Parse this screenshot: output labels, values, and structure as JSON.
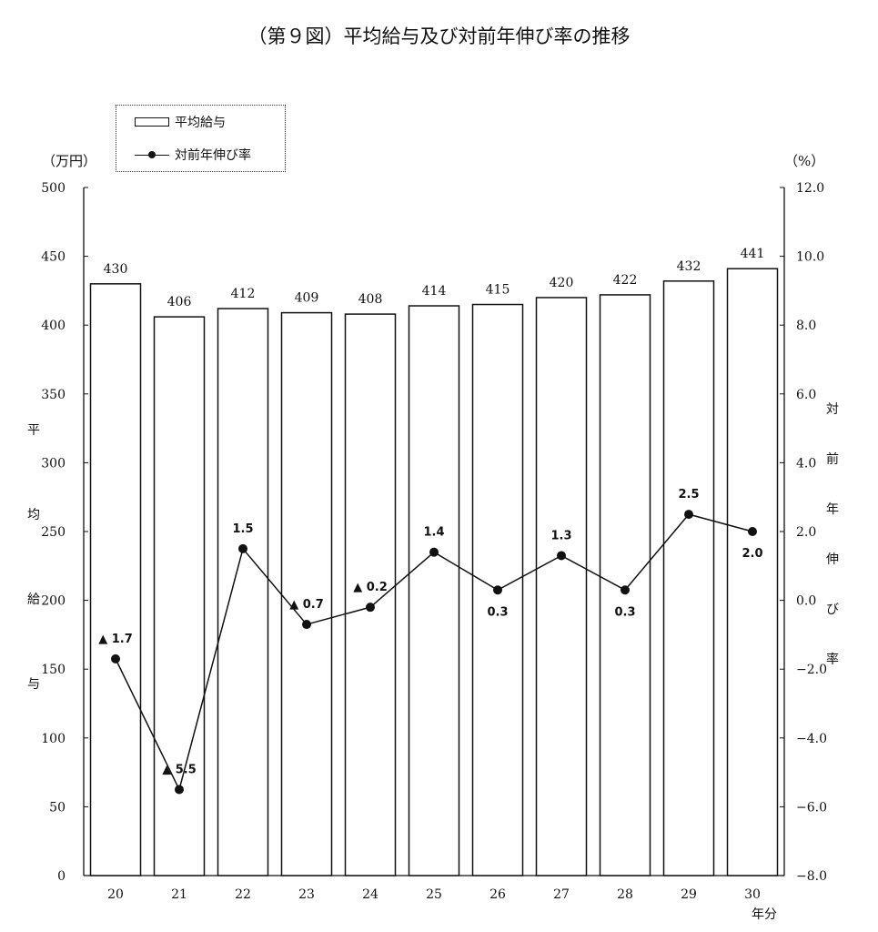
{
  "title": "（第９図）平均給与及び対前年伸び率の推移",
  "chart_data": {
    "type": "bar",
    "categories": [
      "20",
      "21",
      "22",
      "23",
      "24",
      "25",
      "26",
      "27",
      "28",
      "29",
      "30"
    ],
    "x_unit": "年分",
    "series": [
      {
        "name": "平均給与",
        "type": "bar",
        "axis": "left",
        "values": [
          430,
          406,
          412,
          409,
          408,
          414,
          415,
          420,
          422,
          432,
          441
        ]
      },
      {
        "name": "対前年伸び率",
        "type": "line",
        "axis": "right",
        "values": [
          -1.7,
          -5.5,
          1.5,
          -0.7,
          -0.2,
          1.4,
          0.3,
          1.3,
          0.3,
          2.5,
          2.0
        ],
        "value_labels": [
          "▲ 1.7",
          "▲ 5.5",
          "1.5",
          "▲ 0.7",
          "▲ 0.2",
          "1.4",
          "0.3",
          "1.3",
          "0.3",
          "2.5",
          "2.0"
        ]
      }
    ],
    "y_left": {
      "unit": "（万円）",
      "label": "平均給与",
      "ylim": [
        0,
        500
      ],
      "ticks": [
        "0",
        "50",
        "100",
        "150",
        "200",
        "250",
        "300",
        "350",
        "400",
        "450",
        "500"
      ]
    },
    "y_right": {
      "unit": "（%）",
      "label": "対前年伸び率",
      "ylim": [
        -8.0,
        12.0
      ],
      "ticks": [
        "−8.0",
        "−6.0",
        "−4.0",
        "−2.0",
        "0.0",
        "2.0",
        "4.0",
        "6.0",
        "8.0",
        "10.0",
        "12.0"
      ]
    },
    "legend": {
      "position": "top-left",
      "bar_label": "平均給与",
      "line_label": "対前年伸び率"
    },
    "grid": false
  }
}
